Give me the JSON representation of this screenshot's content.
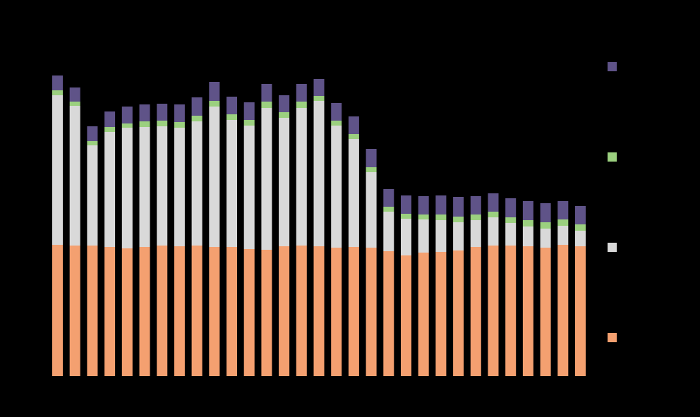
{
  "chart_data": {
    "type": "stacked_bar",
    "categories": [
      null,
      null,
      null,
      null,
      null,
      null,
      null,
      null,
      null,
      null,
      null,
      null,
      null,
      null,
      null,
      null,
      null,
      null,
      null,
      null,
      null,
      null,
      null,
      null,
      null,
      null,
      null,
      null,
      null,
      null,
      null
    ],
    "series": [
      {
        "color": "#f4a070",
        "values": [
          186,
          185,
          185,
          183,
          181,
          183,
          185,
          184,
          185,
          183,
          183,
          180,
          179,
          184,
          185,
          184,
          182,
          183,
          182,
          177,
          171,
          175,
          176,
          178,
          183,
          185,
          185,
          184,
          182,
          186,
          184
        ]
      },
      {
        "color": "#d9d9d9",
        "values": [
          212,
          198,
          142,
          163,
          171,
          170,
          169,
          168,
          176,
          199,
          180,
          175,
          201,
          182,
          195,
          206,
          173,
          153,
          107,
          56,
          52,
          47,
          45,
          40,
          38,
          40,
          32,
          28,
          27,
          27,
          22
        ]
      },
      {
        "color": "#9bd07f",
        "values": [
          7,
          6,
          6,
          7,
          6,
          8,
          8,
          8,
          8,
          8,
          8,
          8,
          9,
          8,
          9,
          7,
          7,
          7,
          7,
          7,
          7,
          7,
          8,
          8,
          8,
          8,
          8,
          9,
          9,
          9,
          9
        ]
      },
      {
        "color": "#5f5388",
        "values": [
          21,
          20,
          21,
          22,
          24,
          24,
          24,
          25,
          26,
          27,
          25,
          25,
          25,
          24,
          25,
          24,
          25,
          25,
          26,
          25,
          26,
          26,
          27,
          28,
          26,
          26,
          27,
          27,
          27,
          26,
          26
        ]
      }
    ],
    "ylim": [
      0,
      450
    ]
  }
}
